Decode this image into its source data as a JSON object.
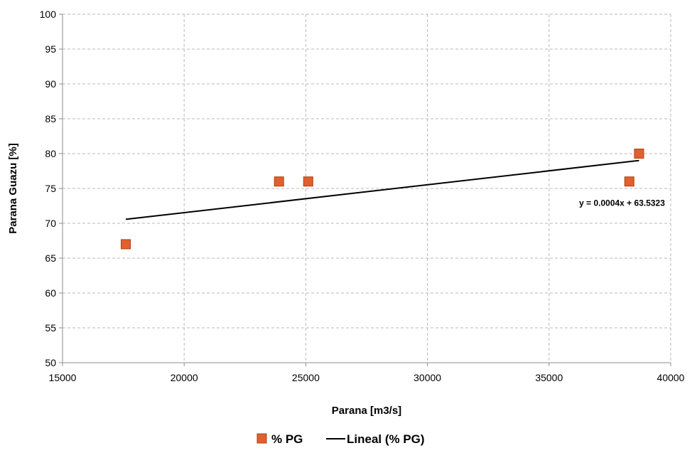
{
  "chart_data": {
    "type": "scatter",
    "title": "",
    "xlabel": "Parana [m3/s]",
    "ylabel": "Parana Guazu  [%]",
    "xlim": [
      15000,
      40000
    ],
    "ylim": [
      50,
      100
    ],
    "xticks": [
      15000,
      20000,
      25000,
      30000,
      35000,
      40000
    ],
    "yticks": [
      50,
      55,
      60,
      65,
      70,
      75,
      80,
      85,
      90,
      95,
      100
    ],
    "grid": true,
    "legend_position": "bottom",
    "series": [
      {
        "name": "% PG",
        "marker": "square",
        "color": "#e06030",
        "x": [
          17600,
          23900,
          25100,
          38300,
          38700
        ],
        "y": [
          67,
          76,
          76,
          76,
          80
        ]
      },
      {
        "name": "Lineal (% PG)",
        "type": "trendline",
        "color": "#000000",
        "x": [
          17600,
          38700
        ],
        "y": [
          70.57,
          79.01
        ]
      }
    ],
    "annotations": [
      {
        "text": "y = 0.0004x + 63.5323",
        "x": 38000,
        "y": 72.5
      }
    ]
  }
}
